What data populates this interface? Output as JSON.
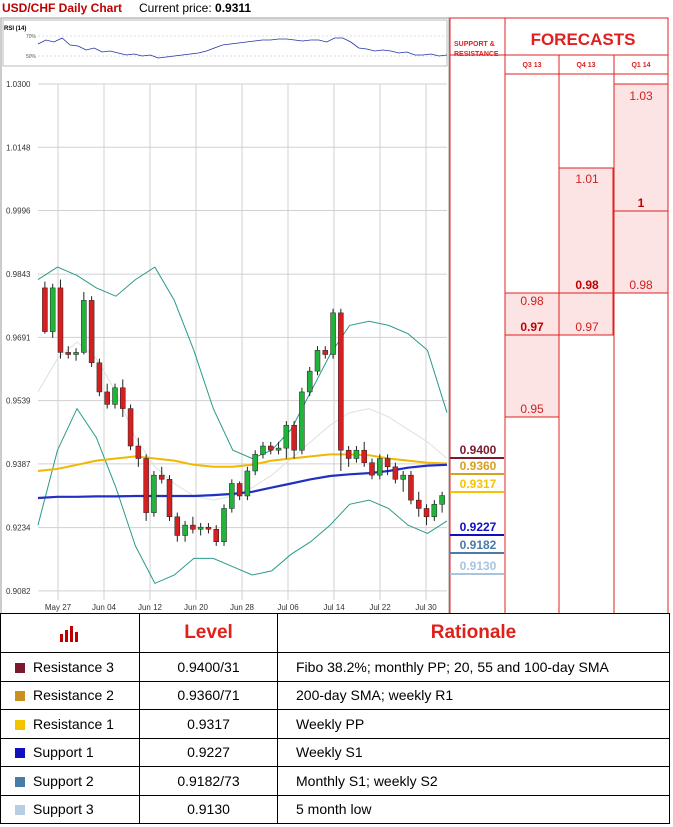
{
  "header": {
    "title": "USD/CHF Daily Chart",
    "price_label": "Current price:",
    "price_value": "0.9311"
  },
  "forecast_panel": {
    "title": "FORECASTS",
    "sr_label_1": "SUPPORT &",
    "sr_label_2": "RESISTANCE",
    "quarters": [
      "Q3 13",
      "Q4 13",
      "Q1 14"
    ],
    "q3": [
      "0.98",
      "0.97",
      "0.95"
    ],
    "q4": [
      "1.01",
      "0.98",
      "0.97"
    ],
    "q1": [
      "1.03",
      "1",
      "0.98"
    ],
    "levels": [
      {
        "value": "0.9400",
        "color": "#7b1a2e"
      },
      {
        "value": "0.9360",
        "color": "#d8a020"
      },
      {
        "value": "0.9317",
        "color": "#f5c400"
      },
      {
        "value": "0.9227",
        "color": "#1010c0"
      },
      {
        "value": "0.9182",
        "color": "#4a7aa8"
      },
      {
        "value": "0.9130",
        "color": "#a8c4e0"
      }
    ]
  },
  "rsi": {
    "label": "RSI (14)",
    "ticks": [
      "70%",
      "50%"
    ]
  },
  "chart_data": {
    "type": "candlestick",
    "title": "USD/CHF Daily Chart",
    "y_ticks": [
      "1.0300",
      "1.0148",
      "0.9996",
      "0.9843",
      "0.9691",
      "0.9539",
      "0.9387",
      "0.9234",
      "0.9082"
    ],
    "x_ticks": [
      "May 27",
      "Jun 04",
      "Jun 12",
      "Jun 20",
      "Jun 28",
      "Jul 06",
      "Jul 14",
      "Jul 22",
      "Jul 30"
    ],
    "ylim": [
      0.906,
      1.03
    ],
    "candles": [
      [
        0.981,
        0.9825,
        0.97,
        0.9705
      ],
      [
        0.9705,
        0.982,
        0.969,
        0.981
      ],
      [
        0.981,
        0.983,
        0.964,
        0.9655
      ],
      [
        0.9655,
        0.967,
        0.964,
        0.965
      ],
      [
        0.965,
        0.9665,
        0.9635,
        0.9655
      ],
      [
        0.9655,
        0.98,
        0.965,
        0.978
      ],
      [
        0.978,
        0.979,
        0.962,
        0.963
      ],
      [
        0.963,
        0.964,
        0.955,
        0.956
      ],
      [
        0.956,
        0.958,
        0.952,
        0.953
      ],
      [
        0.953,
        0.958,
        0.952,
        0.957
      ],
      [
        0.957,
        0.959,
        0.95,
        0.952
      ],
      [
        0.952,
        0.953,
        0.942,
        0.943
      ],
      [
        0.943,
        0.945,
        0.938,
        0.94
      ],
      [
        0.94,
        0.941,
        0.925,
        0.927
      ],
      [
        0.927,
        0.937,
        0.926,
        0.936
      ],
      [
        0.936,
        0.938,
        0.934,
        0.935
      ],
      [
        0.935,
        0.936,
        0.925,
        0.926
      ],
      [
        0.926,
        0.927,
        0.92,
        0.9215
      ],
      [
        0.9215,
        0.925,
        0.92,
        0.924
      ],
      [
        0.924,
        0.926,
        0.922,
        0.923
      ],
      [
        0.923,
        0.9245,
        0.9215,
        0.9235
      ],
      [
        0.9235,
        0.9245,
        0.922,
        0.923
      ],
      [
        0.923,
        0.924,
        0.919,
        0.92
      ],
      [
        0.92,
        0.929,
        0.919,
        0.928
      ],
      [
        0.928,
        0.935,
        0.927,
        0.934
      ],
      [
        0.934,
        0.9345,
        0.93,
        0.931
      ],
      [
        0.931,
        0.938,
        0.93,
        0.937
      ],
      [
        0.937,
        0.942,
        0.936,
        0.941
      ],
      [
        0.941,
        0.944,
        0.94,
        0.943
      ],
      [
        0.943,
        0.944,
        0.941,
        0.942
      ],
      [
        0.942,
        0.944,
        0.941,
        0.9425
      ],
      [
        0.9425,
        0.949,
        0.94,
        0.948
      ],
      [
        0.948,
        0.949,
        0.94,
        0.942
      ],
      [
        0.942,
        0.957,
        0.941,
        0.956
      ],
      [
        0.956,
        0.962,
        0.955,
        0.961
      ],
      [
        0.961,
        0.967,
        0.96,
        0.966
      ],
      [
        0.966,
        0.967,
        0.964,
        0.965
      ],
      [
        0.965,
        0.976,
        0.964,
        0.975
      ],
      [
        0.975,
        0.976,
        0.937,
        0.942
      ],
      [
        0.942,
        0.943,
        0.938,
        0.94
      ],
      [
        0.94,
        0.943,
        0.939,
        0.942
      ],
      [
        0.942,
        0.944,
        0.938,
        0.939
      ],
      [
        0.939,
        0.94,
        0.935,
        0.936
      ],
      [
        0.936,
        0.941,
        0.935,
        0.94
      ],
      [
        0.94,
        0.941,
        0.936,
        0.938
      ],
      [
        0.938,
        0.939,
        0.934,
        0.935
      ],
      [
        0.935,
        0.937,
        0.932,
        0.936
      ],
      [
        0.936,
        0.937,
        0.929,
        0.93
      ],
      [
        0.93,
        0.932,
        0.926,
        0.928
      ],
      [
        0.928,
        0.929,
        0.924,
        0.926
      ],
      [
        0.926,
        0.93,
        0.925,
        0.929
      ],
      [
        0.929,
        0.932,
        0.927,
        0.9311
      ]
    ],
    "sma_yellow": [
      0.937,
      0.9375,
      0.9385,
      0.9395,
      0.94,
      0.9405,
      0.94,
      0.9395,
      0.9385,
      0.938,
      0.938,
      0.9385,
      0.9395,
      0.94,
      0.9405,
      0.941,
      0.941,
      0.9408,
      0.94,
      0.9395,
      0.939,
      0.9388
    ],
    "sma_blue": [
      0.9305,
      0.9308,
      0.9308,
      0.9309,
      0.9309,
      0.931,
      0.931,
      0.931,
      0.931,
      0.9312,
      0.9315,
      0.932,
      0.933,
      0.934,
      0.935,
      0.9358,
      0.9362,
      0.9365,
      0.937,
      0.9378,
      0.9383,
      0.9385
    ],
    "band_upper": [
      0.983,
      0.986,
      0.984,
      0.981,
      0.979,
      0.983,
      0.986,
      0.978,
      0.966,
      0.952,
      0.942,
      0.94,
      0.942,
      0.947,
      0.956,
      0.965,
      0.972,
      0.973,
      0.972,
      0.97,
      0.966,
      0.951
    ],
    "band_lower": [
      0.924,
      0.942,
      0.952,
      0.945,
      0.933,
      0.919,
      0.91,
      0.912,
      0.916,
      0.916,
      0.914,
      0.912,
      0.913,
      0.917,
      0.92,
      0.924,
      0.929,
      0.93,
      0.928,
      0.924,
      0.922,
      0.925
    ],
    "band_mid": [
      0.956,
      0.964,
      0.968,
      0.964,
      0.956,
      0.945,
      0.938,
      0.934,
      0.931,
      0.93,
      0.931,
      0.933,
      0.936,
      0.94,
      0.944,
      0.948,
      0.951,
      0.952,
      0.95,
      0.947,
      0.944,
      0.94
    ]
  },
  "table": {
    "headers": [
      "Level",
      "Rationale"
    ],
    "rows": [
      {
        "name": "Resistance 3",
        "level": "0.9400/31",
        "rationale": "Fibo 38.2%; monthly PP; 20, 55 and 100-day SMA",
        "color": "#7b1a2e"
      },
      {
        "name": "Resistance 2",
        "level": "0.9360/71",
        "rationale": "200-day SMA; weekly R1",
        "color": "#c89020"
      },
      {
        "name": "Resistance 1",
        "level": "0.9317",
        "rationale": "Weekly PP",
        "color": "#f5c400"
      },
      {
        "name": "Support 1",
        "level": "0.9227",
        "rationale": "Weekly S1",
        "color": "#1010c0"
      },
      {
        "name": "Support 2",
        "level": "0.9182/73",
        "rationale": "Monthly S1; weekly S2",
        "color": "#4a7aa8"
      },
      {
        "name": "Support 3",
        "level": "0.9130",
        "rationale": "5 month low",
        "color": "#b8cce4"
      }
    ]
  }
}
